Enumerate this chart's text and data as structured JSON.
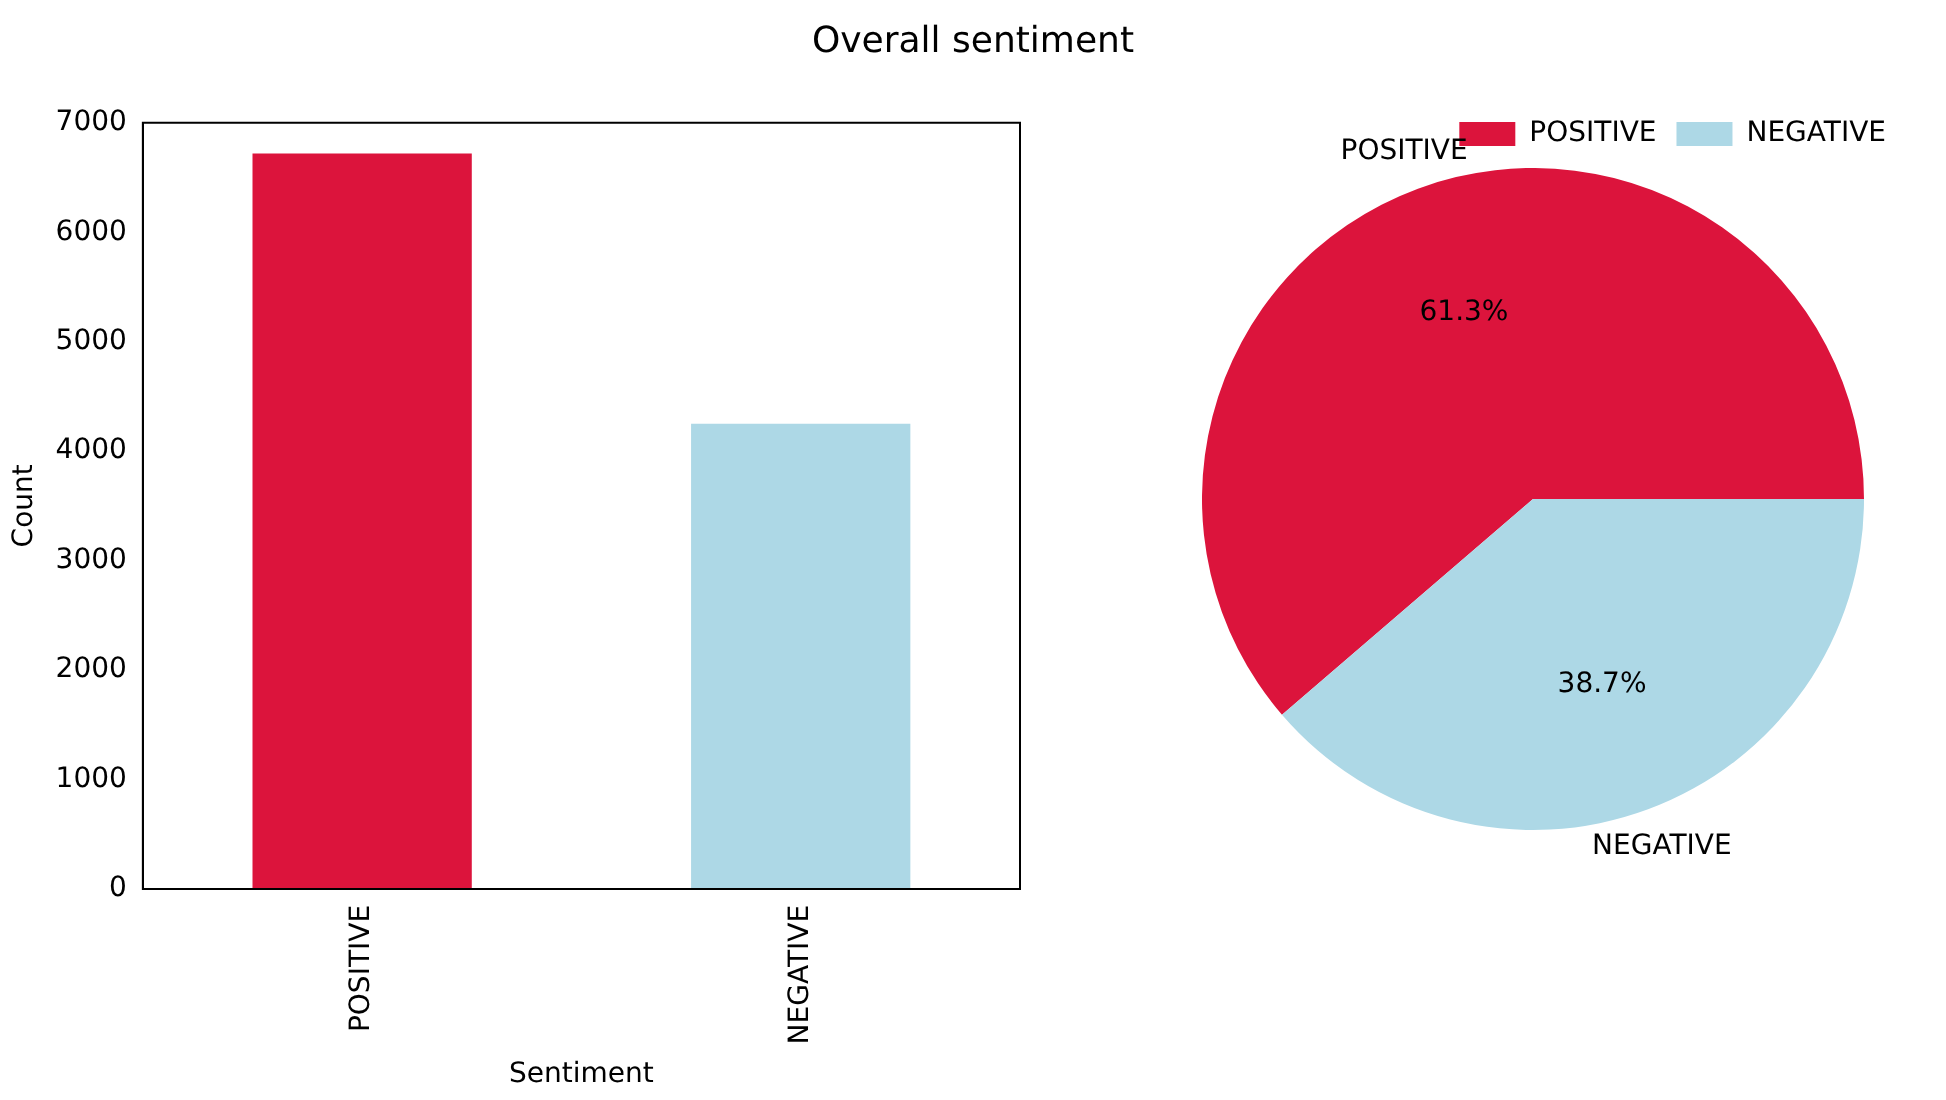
{
  "chart_data": [
    {
      "type": "bar",
      "title": "Overall sentiment",
      "xlabel": "Sentiment",
      "ylabel": "Count",
      "categories": [
        "POSITIVE",
        "NEGATIVE"
      ],
      "values": [
        6720,
        4250
      ],
      "colors": [
        "#dc143c",
        "#add8e6"
      ],
      "ylim": [
        0,
        7000
      ],
      "yticks": [
        0,
        1000,
        2000,
        3000,
        4000,
        5000,
        6000,
        7000
      ],
      "grid": false,
      "legend": false
    },
    {
      "type": "pie",
      "categories": [
        "POSITIVE",
        "NEGATIVE"
      ],
      "values": [
        61.3,
        38.7
      ],
      "colors": [
        "#dc143c",
        "#add8e6"
      ],
      "value_labels": [
        "61.3%",
        "38.7%"
      ],
      "legend": "top right"
    }
  ]
}
